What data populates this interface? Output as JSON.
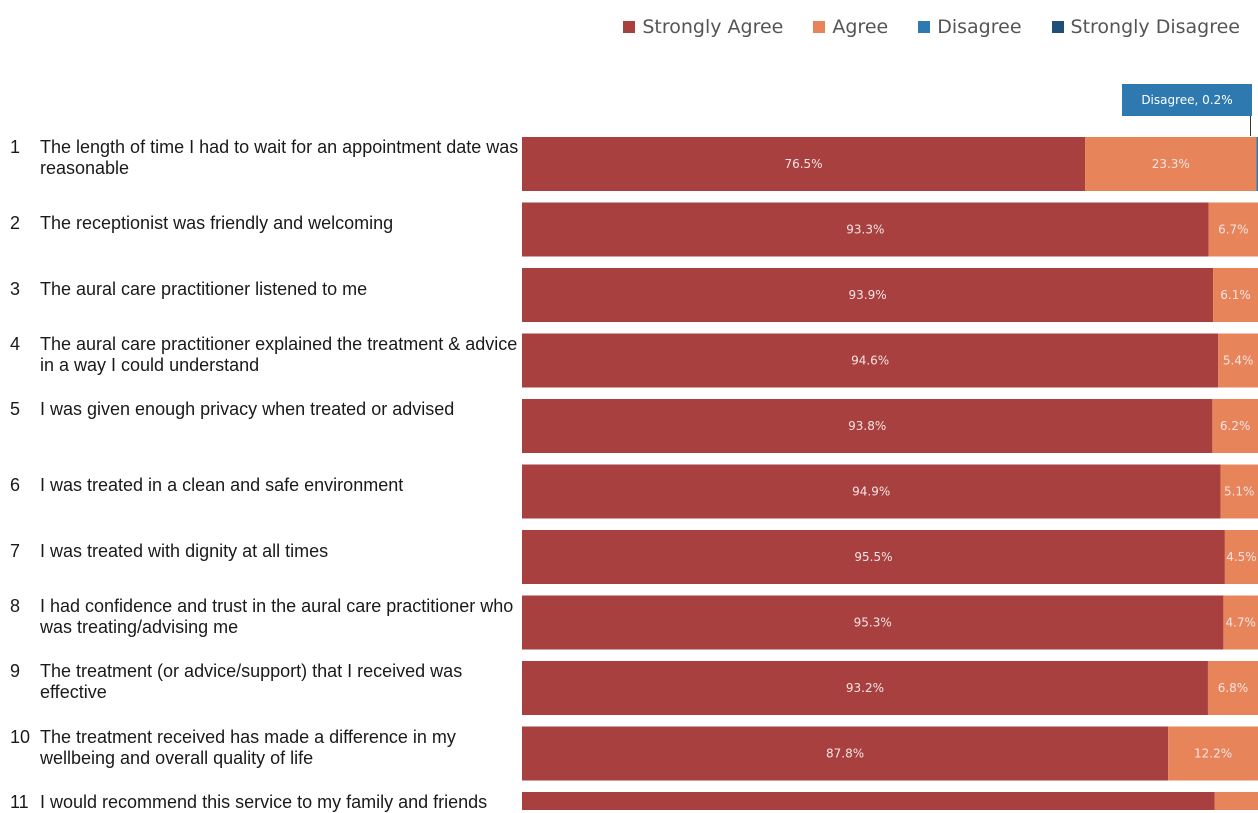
{
  "chart_data": {
    "type": "bar",
    "orientation": "horizontal",
    "stacked": true,
    "grid": false,
    "legend_position": "top-right",
    "xlim": [
      0,
      100
    ],
    "categories": [
      {
        "num": "1",
        "label": "The length of time I had to wait for an appointment date was reasonable"
      },
      {
        "num": "2",
        "label": "The receptionist was friendly and welcoming"
      },
      {
        "num": "3",
        "label": "The aural care practitioner listened to me"
      },
      {
        "num": "4",
        "label": "The aural care practitioner explained the treatment & advice in a way I could understand"
      },
      {
        "num": "5",
        "label": "I was given enough privacy when treated or advised"
      },
      {
        "num": "6",
        "label": "I was treated in a clean and safe environment"
      },
      {
        "num": "7",
        "label": "I was treated with dignity at all times"
      },
      {
        "num": "8",
        "label": "I had confidence and trust in the aural care practitioner who was treating/advising me"
      },
      {
        "num": "9",
        "label": "The treatment (or advice/support) that I received was effective"
      },
      {
        "num": "10",
        "label": "The treatment received has made a difference in my wellbeing and overall quality of life"
      },
      {
        "num": "11",
        "label": "I would recommend this service to my family and friends"
      }
    ],
    "series": [
      {
        "name": "Strongly Agree",
        "color": "#a8403f",
        "values": [
          76.5,
          93.3,
          93.9,
          94.6,
          93.8,
          94.9,
          95.5,
          95.3,
          93.2,
          87.8,
          94.1
        ],
        "labels": [
          "76.5%",
          "93.3%",
          "93.9%",
          "94.6%",
          "93.8%",
          "94.9%",
          "95.5%",
          "95.3%",
          "93.2%",
          "87.8%",
          "94.1%"
        ]
      },
      {
        "name": "Agree",
        "color": "#e8845a",
        "values": [
          23.3,
          6.7,
          6.1,
          5.4,
          6.2,
          5.1,
          4.5,
          4.7,
          6.8,
          12.2,
          5.9
        ],
        "labels": [
          "23.3%",
          "6.7%",
          "6.1%",
          "5.4%",
          "6.2%",
          "5.1%",
          "4.5%",
          "4.7%",
          "6.8%",
          "12.2%",
          "5.9%"
        ]
      },
      {
        "name": "Disagree",
        "color": "#2e7ab0",
        "values": [
          0.2,
          0,
          0,
          0,
          0,
          0,
          0,
          0,
          0,
          0,
          0
        ]
      },
      {
        "name": "Strongly Disagree",
        "color": "#1f4e79",
        "values": [
          0,
          0,
          0,
          0,
          0,
          0,
          0,
          0,
          0,
          0,
          0
        ]
      }
    ],
    "annotations": [
      {
        "text": "Disagree, 0.2%",
        "category": "1",
        "series": "Disagree"
      }
    ]
  }
}
